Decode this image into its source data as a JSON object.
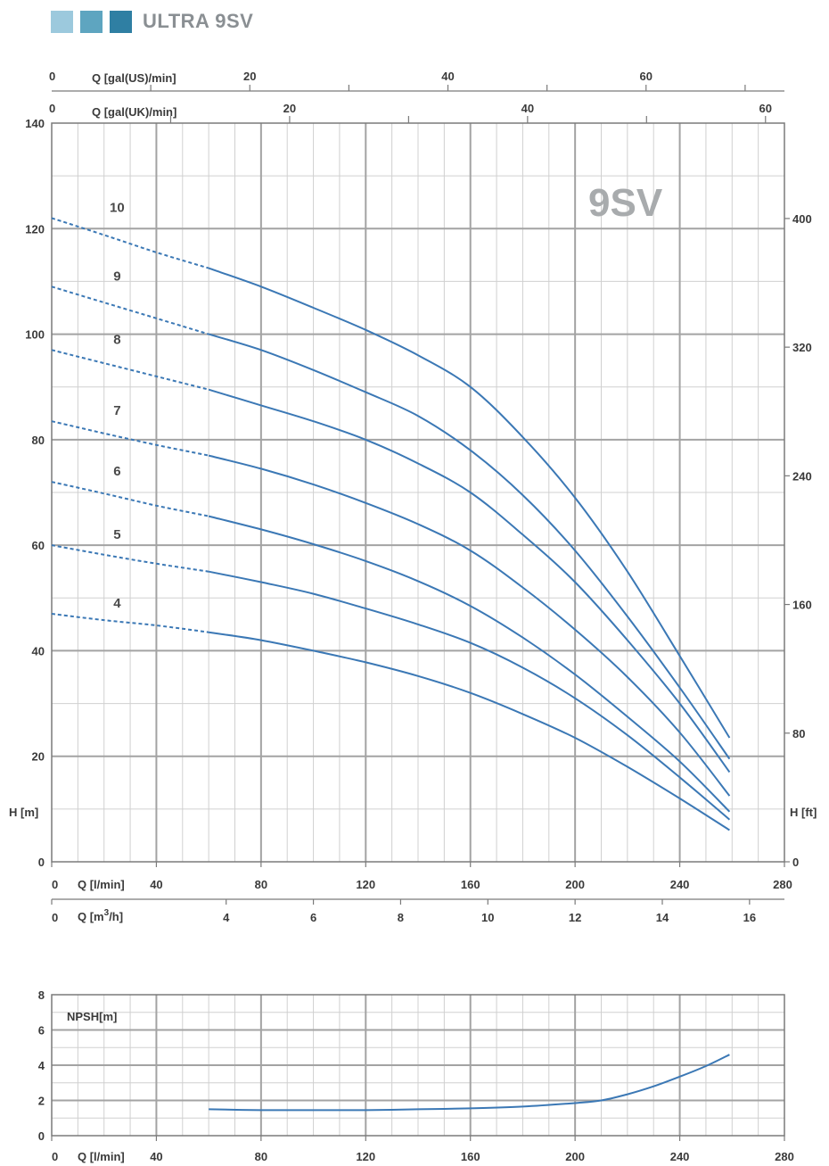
{
  "header": {
    "title": "ULTRA 9SV",
    "squares": [
      "#9cc9dd",
      "#5ea5c0",
      "#2f7fa3"
    ]
  },
  "colors": {
    "curve": "#3b78b5",
    "grid_major": "#a3a3a3",
    "grid_minor": "#d0d0d0",
    "axis": "#7a7a7a"
  },
  "chart_data": [
    {
      "type": "line",
      "name_label": "9SV",
      "xlabel": "Q [l/min]",
      "ylabel": "H [m]",
      "y2label": "H [ft]",
      "xlim": [
        0,
        280
      ],
      "ylim": [
        0,
        140
      ],
      "x_ticks": [
        0,
        40,
        80,
        120,
        160,
        200,
        240,
        280
      ],
      "y_ticks": [
        0,
        20,
        40,
        60,
        80,
        100,
        120,
        140
      ],
      "y2_ticks": [
        0,
        80,
        160,
        240,
        320,
        400
      ],
      "secondary_x_axes": [
        {
          "label": "Q [m3/h]",
          "ticks": [
            0,
            4,
            6,
            8,
            10,
            12,
            14,
            16
          ]
        },
        {
          "label": "Q [gal(UK)/min]",
          "ticks": [
            0,
            20,
            40,
            60
          ]
        },
        {
          "label": "Q [gal(US)/min]",
          "ticks": [
            0,
            20,
            40,
            60
          ]
        }
      ],
      "dashed_until_x": 60,
      "series": [
        {
          "name": "10",
          "points": [
            [
              0,
              122
            ],
            [
              20,
              118.8
            ],
            [
              40,
              115.5
            ],
            [
              60,
              112.5
            ],
            [
              80,
              109
            ],
            [
              100,
              105
            ],
            [
              120,
              100.8
            ],
            [
              140,
              96
            ],
            [
              160,
              90
            ],
            [
              180,
              80.5
            ],
            [
              200,
              69
            ],
            [
              220,
              55
            ],
            [
              240,
              39
            ],
            [
              259,
              23.5
            ]
          ]
        },
        {
          "name": "9",
          "points": [
            [
              0,
              109
            ],
            [
              20,
              106
            ],
            [
              40,
              103
            ],
            [
              60,
              100
            ],
            [
              80,
              97
            ],
            [
              100,
              93.2
            ],
            [
              120,
              89
            ],
            [
              140,
              84.5
            ],
            [
              160,
              78
            ],
            [
              180,
              69.5
            ],
            [
              200,
              59
            ],
            [
              220,
              46.5
            ],
            [
              240,
              33
            ],
            [
              259,
              19.5
            ]
          ]
        },
        {
          "name": "8",
          "points": [
            [
              0,
              97
            ],
            [
              20,
              94.5
            ],
            [
              40,
              92
            ],
            [
              60,
              89.5
            ],
            [
              80,
              86.5
            ],
            [
              100,
              83.5
            ],
            [
              120,
              80
            ],
            [
              140,
              75.5
            ],
            [
              160,
              70
            ],
            [
              180,
              62
            ],
            [
              200,
              53
            ],
            [
              220,
              42
            ],
            [
              240,
              30
            ],
            [
              259,
              17
            ]
          ]
        },
        {
          "name": "7",
          "points": [
            [
              0,
              83.5
            ],
            [
              20,
              81.2
            ],
            [
              40,
              79
            ],
            [
              60,
              77
            ],
            [
              80,
              74.5
            ],
            [
              100,
              71.5
            ],
            [
              120,
              68
            ],
            [
              140,
              64
            ],
            [
              160,
              59
            ],
            [
              180,
              52
            ],
            [
              200,
              44
            ],
            [
              220,
              35
            ],
            [
              240,
              24.5
            ],
            [
              259,
              12.5
            ]
          ]
        },
        {
          "name": "6",
          "points": [
            [
              0,
              72
            ],
            [
              20,
              69.8
            ],
            [
              40,
              67.5
            ],
            [
              60,
              65.5
            ],
            [
              80,
              63
            ],
            [
              100,
              60.2
            ],
            [
              120,
              57
            ],
            [
              140,
              53.2
            ],
            [
              160,
              48.5
            ],
            [
              180,
              42.5
            ],
            [
              200,
              35.5
            ],
            [
              220,
              27.5
            ],
            [
              240,
              19
            ],
            [
              259,
              9.5
            ]
          ]
        },
        {
          "name": "5",
          "points": [
            [
              0,
              60
            ],
            [
              20,
              58.2
            ],
            [
              40,
              56.5
            ],
            [
              60,
              55
            ],
            [
              80,
              53
            ],
            [
              100,
              50.8
            ],
            [
              120,
              48
            ],
            [
              140,
              45
            ],
            [
              160,
              41.5
            ],
            [
              180,
              36.8
            ],
            [
              200,
              31
            ],
            [
              220,
              24
            ],
            [
              240,
              16
            ],
            [
              259,
              8
            ]
          ]
        },
        {
          "name": "4",
          "points": [
            [
              0,
              47
            ],
            [
              20,
              45.8
            ],
            [
              40,
              44.8
            ],
            [
              60,
              43.5
            ],
            [
              80,
              42
            ],
            [
              100,
              40
            ],
            [
              120,
              37.8
            ],
            [
              140,
              35.2
            ],
            [
              160,
              32
            ],
            [
              180,
              28
            ],
            [
              200,
              23.5
            ],
            [
              220,
              18
            ],
            [
              240,
              12
            ],
            [
              259,
              6
            ]
          ]
        }
      ]
    },
    {
      "type": "line",
      "xlabel": "Q [l/min]",
      "ylabel": "NPSH[m]",
      "xlim": [
        0,
        280
      ],
      "ylim": [
        0,
        8
      ],
      "x_ticks": [
        0,
        40,
        80,
        120,
        160,
        200,
        240,
        280
      ],
      "y_ticks": [
        0,
        2,
        4,
        6,
        8
      ],
      "series": [
        {
          "name": "NPSH",
          "points": [
            [
              60,
              1.5
            ],
            [
              80,
              1.45
            ],
            [
              100,
              1.45
            ],
            [
              120,
              1.45
            ],
            [
              140,
              1.5
            ],
            [
              160,
              1.55
            ],
            [
              180,
              1.65
            ],
            [
              200,
              1.85
            ],
            [
              210,
              2.0
            ],
            [
              220,
              2.35
            ],
            [
              230,
              2.8
            ],
            [
              240,
              3.35
            ],
            [
              250,
              3.95
            ],
            [
              259,
              4.6
            ]
          ]
        }
      ]
    }
  ]
}
